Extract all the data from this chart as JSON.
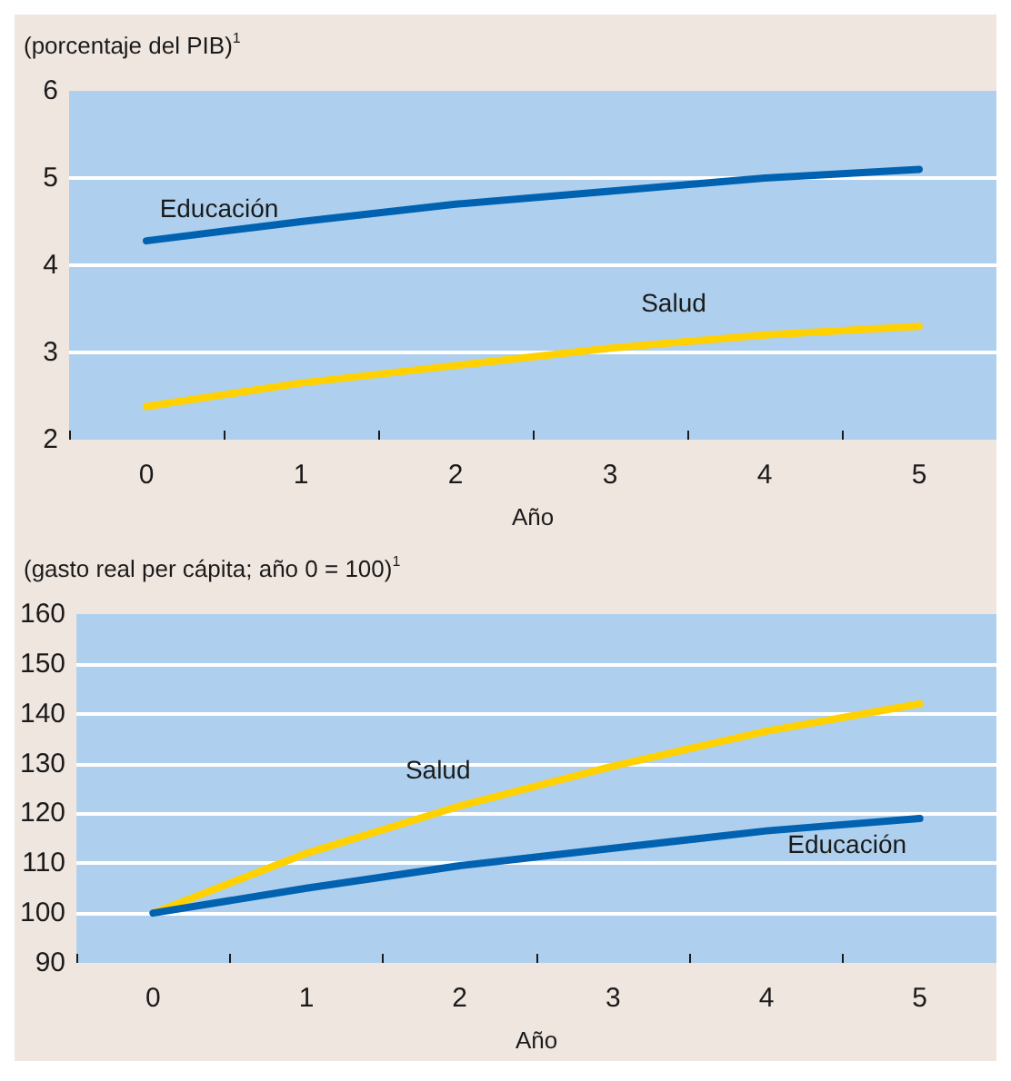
{
  "chart_data": [
    {
      "type": "line",
      "ylabel": "(porcentaje del PIB)$^{1}$",
      "xlabel": "Año",
      "categories": [
        "0",
        "1",
        "2",
        "3",
        "4",
        "5"
      ],
      "ylim": [
        2,
        6
      ],
      "yticks": [
        2,
        3,
        4,
        5,
        6
      ],
      "grid": "y",
      "legend": false,
      "marker": "none",
      "line_style": "solid",
      "series": [
        {
          "name": "Educación",
          "color": "#0062b1",
          "values": [
            4.28,
            4.5,
            4.7,
            4.85,
            5.0,
            5.1
          ]
        },
        {
          "name": "Salud",
          "color": "#ffd100",
          "values": [
            2.38,
            2.65,
            2.85,
            3.05,
            3.2,
            3.3
          ]
        }
      ]
    },
    {
      "type": "line",
      "ylabel": "(gasto real per cápita; año 0 = 100)$^{1}$",
      "xlabel": "Año",
      "categories": [
        "0",
        "1",
        "2",
        "3",
        "4",
        "5"
      ],
      "ylim": [
        90,
        160
      ],
      "yticks": [
        90,
        100,
        110,
        120,
        130,
        140,
        150,
        160
      ],
      "grid": "y",
      "legend": false,
      "marker": "none",
      "line_style": "solid",
      "series": [
        {
          "name": "Salud",
          "color": "#ffd100",
          "values": [
            100,
            112,
            121.5,
            129.5,
            136.5,
            142
          ]
        },
        {
          "name": "Educación",
          "color": "#0062b1",
          "values": [
            100,
            105,
            109.5,
            113,
            116.5,
            119
          ]
        }
      ]
    }
  ]
}
